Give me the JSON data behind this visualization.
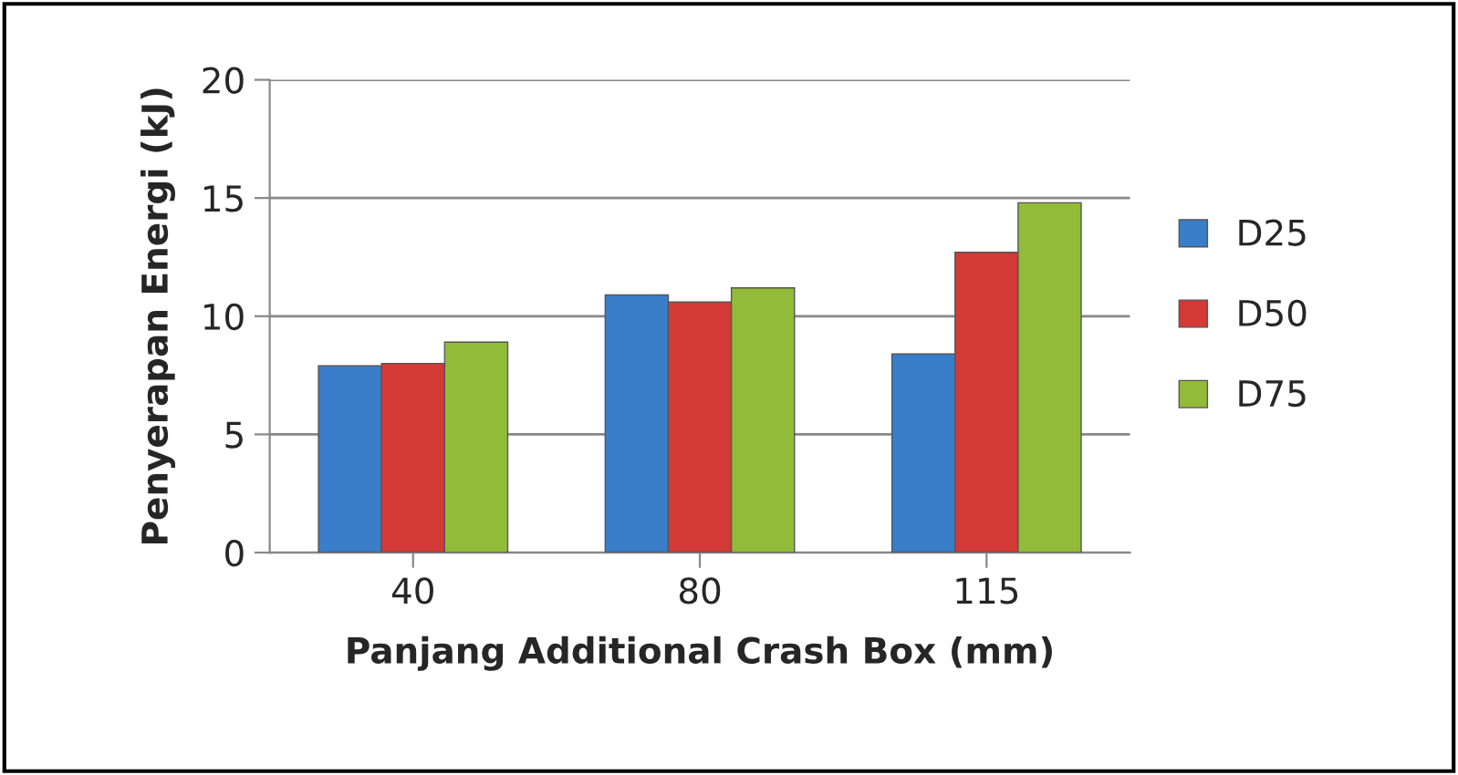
{
  "chart_data": {
    "type": "bar",
    "xlabel": "Panjang Additional Crash Box (mm)",
    "ylabel": "Penyerapan Energi (kJ)",
    "categories": [
      "40",
      "80",
      "115"
    ],
    "series": [
      {
        "name": "D25",
        "color": "#3a7dc9",
        "values": [
          7.9,
          10.9,
          8.4
        ]
      },
      {
        "name": "D50",
        "color": "#d33a36",
        "values": [
          8.0,
          10.6,
          12.7
        ]
      },
      {
        "name": "D75",
        "color": "#92bb3a",
        "values": [
          8.9,
          11.2,
          14.8
        ]
      }
    ],
    "ylim": [
      0,
      20
    ],
    "yticks": [
      0,
      5,
      10,
      15,
      20
    ],
    "grid": "y",
    "legend": "right"
  }
}
